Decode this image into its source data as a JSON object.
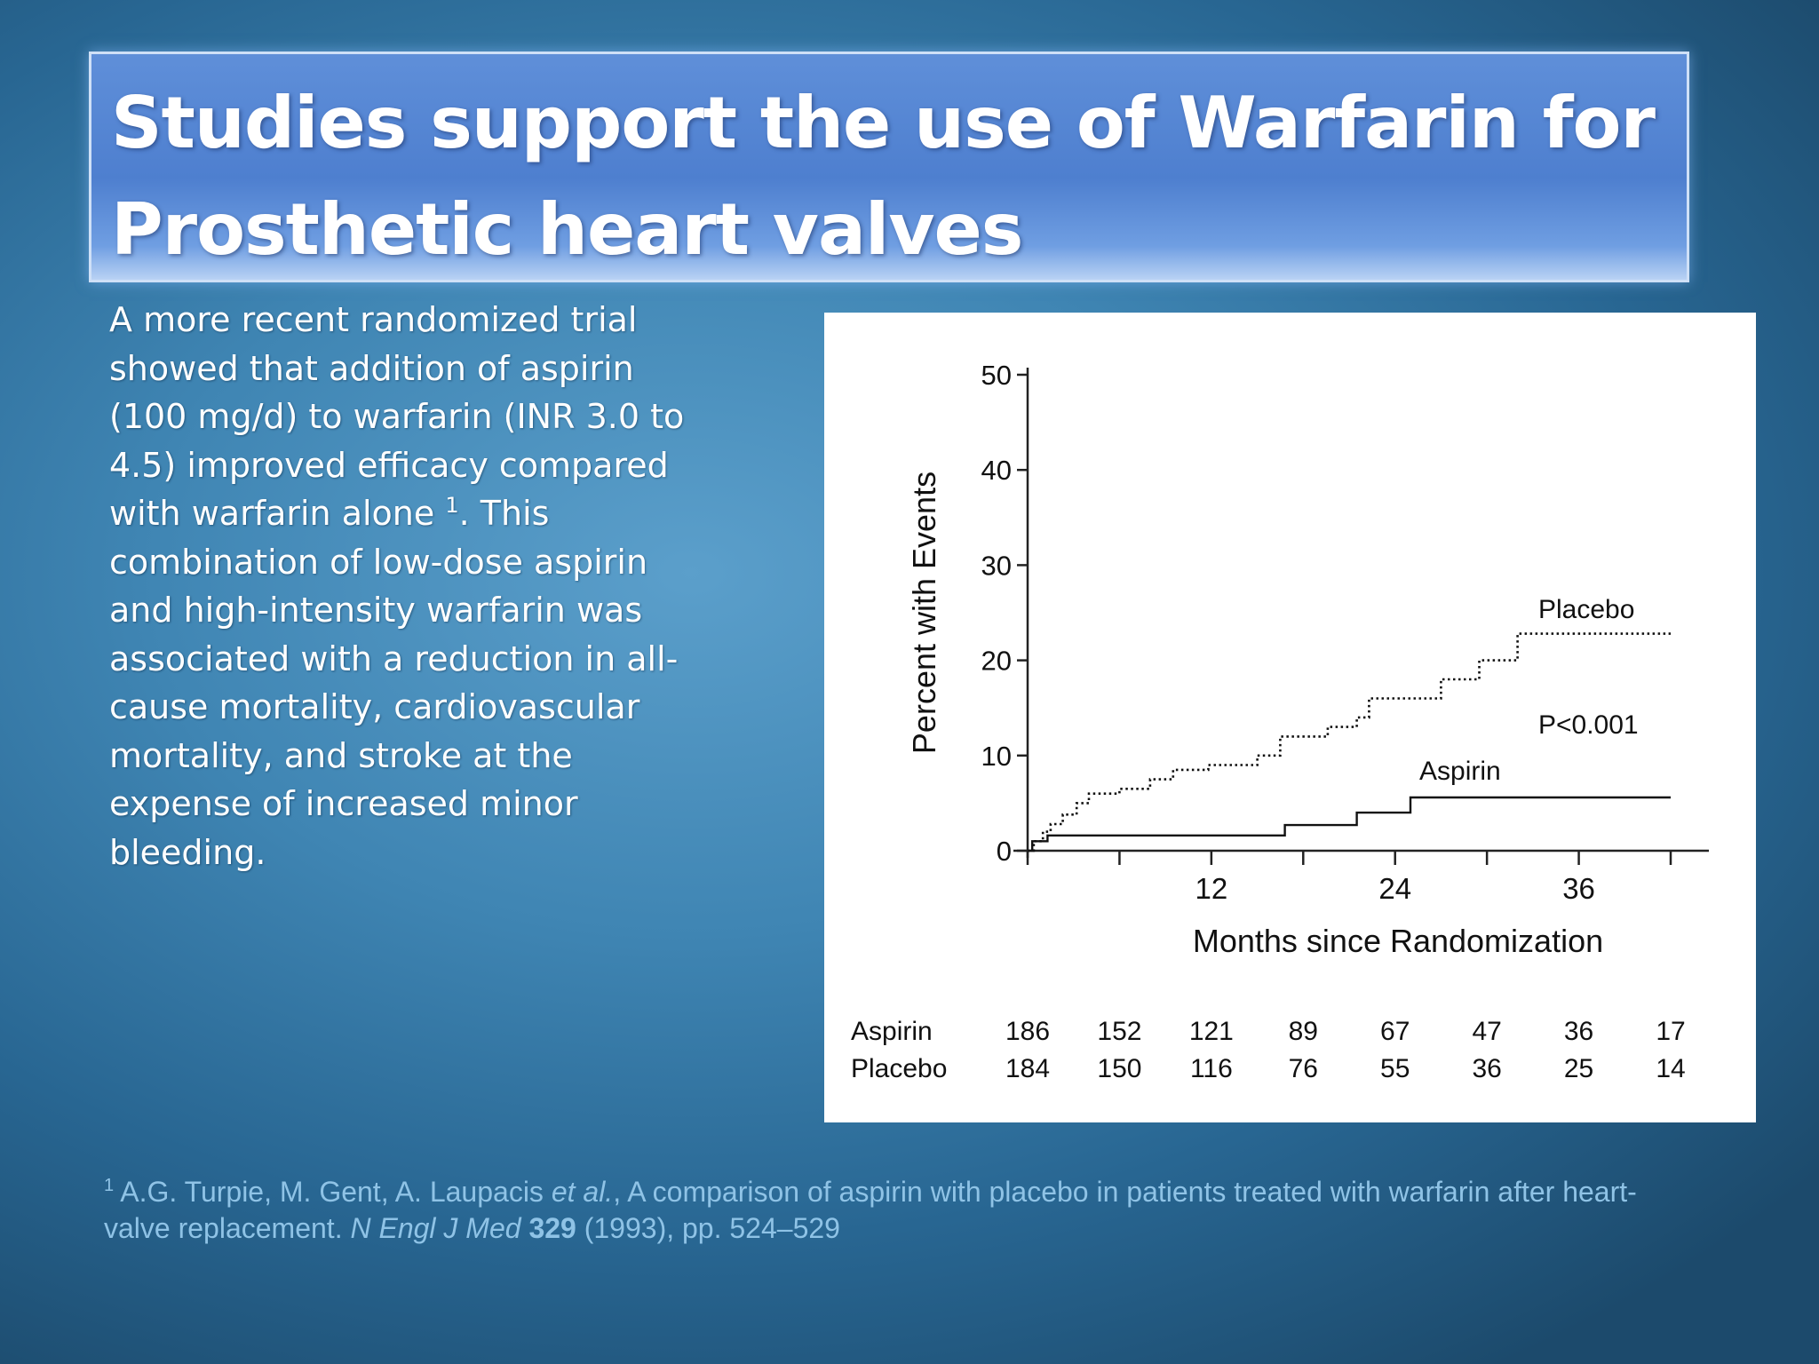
{
  "title": {
    "line1": "Studies support the use of Warfarin for",
    "line2": "Prosthetic heart valves"
  },
  "body": {
    "text_before_ref": "A more recent randomized trial showed that addition of aspirin (100 mg/d) to warfarin (INR 3.0 to 4.5) improved efficacy compared with warfarin alone ",
    "ref_marker": "1",
    "text_after_ref": ". This combination of low-dose aspirin and high-intensity warfarin was associated with a reduction in all-cause mortality, cardiovascular mortality, and stroke at the expense of increased minor bleeding."
  },
  "footnote": {
    "marker": "1",
    "authors": " A.G. Turpie, M. Gent, A. Laupacis ",
    "etal": "et al.",
    "article": ", A comparison of aspirin with placebo in patients treated with warfarin after heart-valve replacement. ",
    "journal": "N Engl J Med",
    "volume": "329",
    "pages": " (1993), pp. 524–529"
  },
  "chart_data": {
    "type": "line",
    "title": "",
    "xlabel": "Months since Randomization",
    "ylabel": "Percent with Events",
    "xlim": [
      0,
      42
    ],
    "ylim": [
      0,
      50
    ],
    "x_tick_labels": [
      12,
      24,
      36
    ],
    "x_tick_marks": [
      0,
      6,
      12,
      18,
      24,
      30,
      36,
      42
    ],
    "y_ticks": [
      0,
      10,
      20,
      30,
      40,
      50
    ],
    "grid": false,
    "annotations": [
      "Placebo",
      "Aspirin",
      "P<0.001"
    ],
    "series": [
      {
        "name": "Placebo",
        "style": "dotted",
        "points": [
          [
            0,
            0
          ],
          [
            0.4,
            0
          ],
          [
            0.4,
            1
          ],
          [
            1,
            1
          ],
          [
            1,
            2
          ],
          [
            1.5,
            2
          ],
          [
            1.5,
            2.8
          ],
          [
            2.3,
            2.8
          ],
          [
            2.3,
            3.8
          ],
          [
            3.2,
            3.8
          ],
          [
            3.2,
            5
          ],
          [
            4,
            5
          ],
          [
            4,
            6
          ],
          [
            6,
            6
          ],
          [
            6,
            6.5
          ],
          [
            8,
            6.5
          ],
          [
            8,
            7.5
          ],
          [
            9.5,
            7.5
          ],
          [
            9.5,
            8.5
          ],
          [
            11.8,
            8.5
          ],
          [
            11.8,
            9
          ],
          [
            15,
            9
          ],
          [
            15,
            10
          ],
          [
            16.5,
            10
          ],
          [
            16.5,
            12
          ],
          [
            19.6,
            12
          ],
          [
            19.6,
            13
          ],
          [
            21.5,
            13
          ],
          [
            21.5,
            14
          ],
          [
            22.3,
            14
          ],
          [
            22.3,
            16
          ],
          [
            27,
            16
          ],
          [
            27,
            18
          ],
          [
            29.5,
            18
          ],
          [
            29.5,
            20
          ],
          [
            32,
            20
          ],
          [
            32,
            22.8
          ],
          [
            42,
            22.8
          ]
        ]
      },
      {
        "name": "Aspirin",
        "style": "solid",
        "points": [
          [
            0,
            0
          ],
          [
            0.3,
            0
          ],
          [
            0.3,
            1
          ],
          [
            1.3,
            1
          ],
          [
            1.3,
            1.6
          ],
          [
            16.8,
            1.6
          ],
          [
            16.8,
            2.7
          ],
          [
            21.5,
            2.7
          ],
          [
            21.5,
            4
          ],
          [
            25,
            4
          ],
          [
            25,
            5.6
          ],
          [
            42,
            5.6
          ]
        ]
      }
    ],
    "risk_table": {
      "rows": [
        {
          "label": "Aspirin",
          "values": [
            186,
            152,
            121,
            89,
            67,
            47,
            36,
            17
          ]
        },
        {
          "label": "Placebo",
          "values": [
            184,
            150,
            116,
            76,
            55,
            36,
            25,
            14
          ]
        }
      ],
      "at_months": [
        0,
        6,
        12,
        18,
        24,
        30,
        36,
        42
      ]
    }
  }
}
